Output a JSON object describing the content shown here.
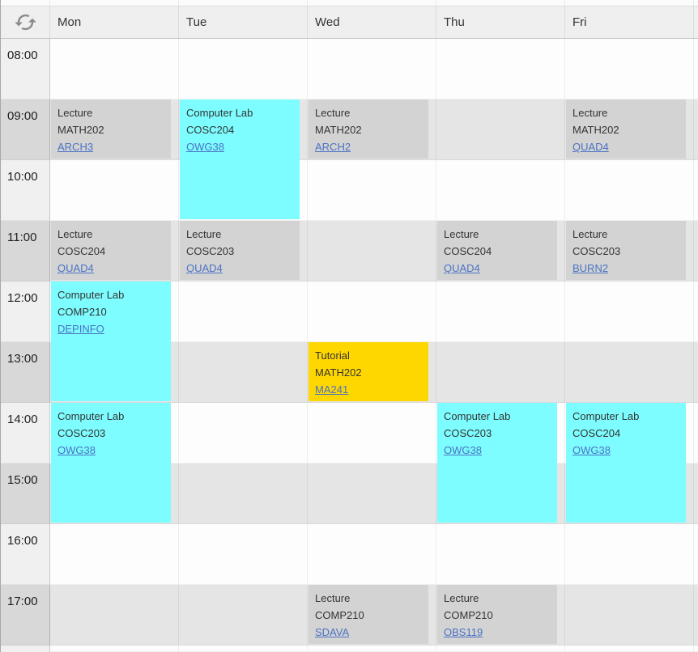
{
  "header": {
    "days": [
      "Mon",
      "Tue",
      "Wed",
      "Thu",
      "Fri"
    ]
  },
  "time_column": {
    "times": [
      "08:00",
      "09:00",
      "10:00",
      "11:00",
      "12:00",
      "13:00",
      "14:00",
      "15:00",
      "16:00",
      "17:00"
    ]
  },
  "icons": {
    "sync": "sync-icon"
  },
  "events": [
    {
      "day": "Mon",
      "start": "09:00",
      "end": "10:00",
      "type": "Lecture",
      "course": "MATH202",
      "room": "ARCH3",
      "category": "lecture"
    },
    {
      "day": "Tue",
      "start": "09:00",
      "end": "11:00",
      "type": "Computer Lab",
      "course": "COSC204",
      "room": "OWG38",
      "category": "lab"
    },
    {
      "day": "Wed",
      "start": "09:00",
      "end": "10:00",
      "type": "Lecture",
      "course": "MATH202",
      "room": "ARCH2",
      "category": "lecture"
    },
    {
      "day": "Fri",
      "start": "09:00",
      "end": "10:00",
      "type": "Lecture",
      "course": "MATH202",
      "room": "QUAD4",
      "category": "lecture"
    },
    {
      "day": "Mon",
      "start": "11:00",
      "end": "12:00",
      "type": "Lecture",
      "course": "COSC204",
      "room": "QUAD4",
      "category": "lecture"
    },
    {
      "day": "Tue",
      "start": "11:00",
      "end": "12:00",
      "type": "Lecture",
      "course": "COSC203",
      "room": "QUAD4",
      "category": "lecture"
    },
    {
      "day": "Thu",
      "start": "11:00",
      "end": "12:00",
      "type": "Lecture",
      "course": "COSC204",
      "room": "QUAD4",
      "category": "lecture"
    },
    {
      "day": "Fri",
      "start": "11:00",
      "end": "12:00",
      "type": "Lecture",
      "course": "COSC203",
      "room": "BURN2",
      "category": "lecture"
    },
    {
      "day": "Mon",
      "start": "12:00",
      "end": "14:00",
      "type": "Computer Lab",
      "course": "COMP210",
      "room": "DEPINFO",
      "category": "lab"
    },
    {
      "day": "Wed",
      "start": "13:00",
      "end": "14:00",
      "type": "Tutorial",
      "course": "MATH202",
      "room": "MA241",
      "category": "tutorial"
    },
    {
      "day": "Mon",
      "start": "14:00",
      "end": "16:00",
      "type": "Computer Lab",
      "course": "COSC203",
      "room": "OWG38",
      "category": "lab"
    },
    {
      "day": "Thu",
      "start": "14:00",
      "end": "16:00",
      "type": "Computer Lab",
      "course": "COSC203",
      "room": "OWG38",
      "category": "lab"
    },
    {
      "day": "Fri",
      "start": "14:00",
      "end": "16:00",
      "type": "Computer Lab",
      "course": "COSC204",
      "room": "OWG38",
      "category": "lab"
    },
    {
      "day": "Wed",
      "start": "17:00",
      "end": "18:00",
      "type": "Lecture",
      "course": "COMP210",
      "room": "SDAVA",
      "category": "lecture"
    },
    {
      "day": "Thu",
      "start": "17:00",
      "end": "18:00",
      "type": "Lecture",
      "course": "COMP210",
      "room": "OBS119",
      "category": "lecture"
    }
  ],
  "colors": {
    "lecture_bg": "#d3d3d3",
    "lab_bg": "#7dfdff",
    "tutorial_bg": "#ffd700",
    "link": "#4a72c4",
    "header_bg": "#efefef",
    "time_light_bg": "#f0f0f0",
    "time_stripe_bg": "#d8d8d8",
    "day_light_bg": "#fdfdfd",
    "day_stripe_bg": "#e5e5e5"
  }
}
